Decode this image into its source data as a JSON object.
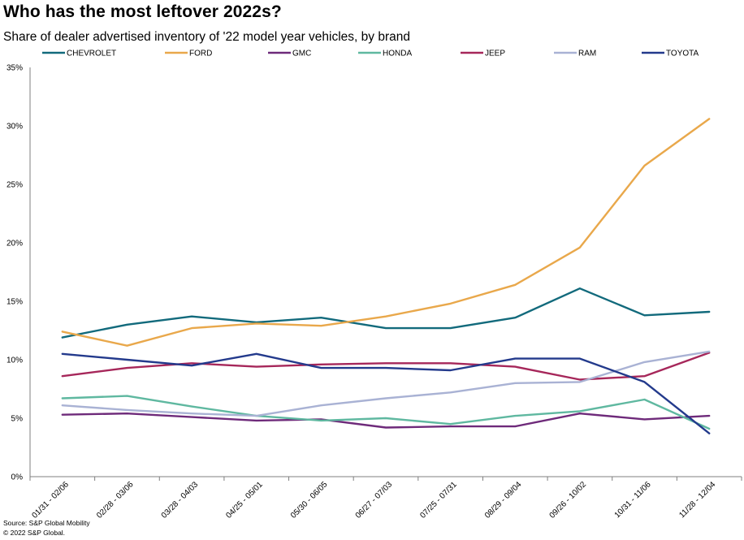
{
  "title": "Who has the most leftover 2022s?",
  "subtitle": "Share of dealer advertised inventory of '22 model year vehicles, by brand",
  "source": "Source: S&P Global Mobility",
  "copyright": "© 2022 S&P Global.",
  "chart_data": {
    "type": "line",
    "categories": [
      "01/31 - 02/06",
      "02/28 - 03/06",
      "03/28 - 04/03",
      "04/25 - 05/01",
      "05/30 - 06/05",
      "06/27 - 07/03",
      "07/25 - 07/31",
      "08/29 - 09/04",
      "09/26 - 10/02",
      "10/31 - 11/06",
      "11/28 - 12/04"
    ],
    "ylim": [
      0,
      35
    ],
    "yticks": [
      0,
      5,
      10,
      15,
      20,
      25,
      30,
      35
    ],
    "ytick_labels": [
      "0%",
      "5%",
      "10%",
      "15%",
      "20%",
      "25%",
      "30%",
      "35%"
    ],
    "y_unit": "percent",
    "grid": false,
    "legend_position": "top",
    "series": [
      {
        "name": "CHEVROLET",
        "color": "#126a7c",
        "values": [
          11.9,
          13.0,
          13.7,
          13.2,
          13.6,
          12.7,
          12.7,
          13.6,
          16.1,
          13.8,
          14.1
        ]
      },
      {
        "name": "FORD",
        "color": "#e9a84b",
        "values": [
          12.4,
          11.2,
          12.7,
          13.1,
          12.9,
          13.7,
          14.8,
          16.4,
          19.6,
          26.6,
          30.6
        ]
      },
      {
        "name": "GMC",
        "color": "#6e2a7a",
        "values": [
          5.3,
          5.4,
          5.1,
          4.8,
          4.9,
          4.2,
          4.3,
          4.3,
          5.4,
          4.9,
          5.2
        ]
      },
      {
        "name": "HONDA",
        "color": "#5fb8a0",
        "values": [
          6.7,
          6.9,
          6.0,
          5.2,
          4.8,
          5.0,
          4.5,
          5.2,
          5.6,
          6.6,
          4.1
        ]
      },
      {
        "name": "JEEP",
        "color": "#a6275a",
        "values": [
          8.6,
          9.3,
          9.7,
          9.4,
          9.6,
          9.7,
          9.7,
          9.4,
          8.3,
          8.6,
          10.6
        ]
      },
      {
        "name": "RAM",
        "color": "#a9b2d4",
        "values": [
          6.1,
          5.7,
          5.4,
          5.2,
          6.1,
          6.7,
          7.2,
          8.0,
          8.1,
          9.8,
          10.7
        ]
      },
      {
        "name": "TOYOTA",
        "color": "#233a8c",
        "values": [
          10.5,
          10.0,
          9.5,
          10.5,
          9.3,
          9.3,
          9.1,
          10.1,
          10.1,
          8.1,
          3.7
        ]
      }
    ]
  }
}
